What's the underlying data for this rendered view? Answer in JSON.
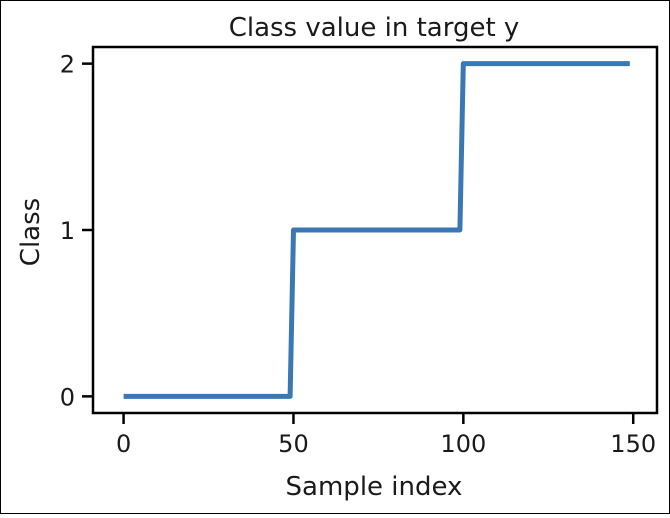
{
  "chart_data": {
    "type": "line",
    "title": "Class value in target y",
    "xlabel": "Sample index",
    "ylabel": "Class",
    "xlim": [
      -9,
      157
    ],
    "ylim": [
      -0.1,
      2.1
    ],
    "xticks": [
      0,
      50,
      100,
      150
    ],
    "yticks": [
      0,
      1,
      2
    ],
    "grid": false,
    "series": [
      {
        "x": [
          0,
          49,
          50,
          99,
          100,
          149
        ],
        "y": [
          0,
          0,
          1,
          1,
          2,
          2
        ],
        "color": "#3a78b4"
      }
    ]
  }
}
